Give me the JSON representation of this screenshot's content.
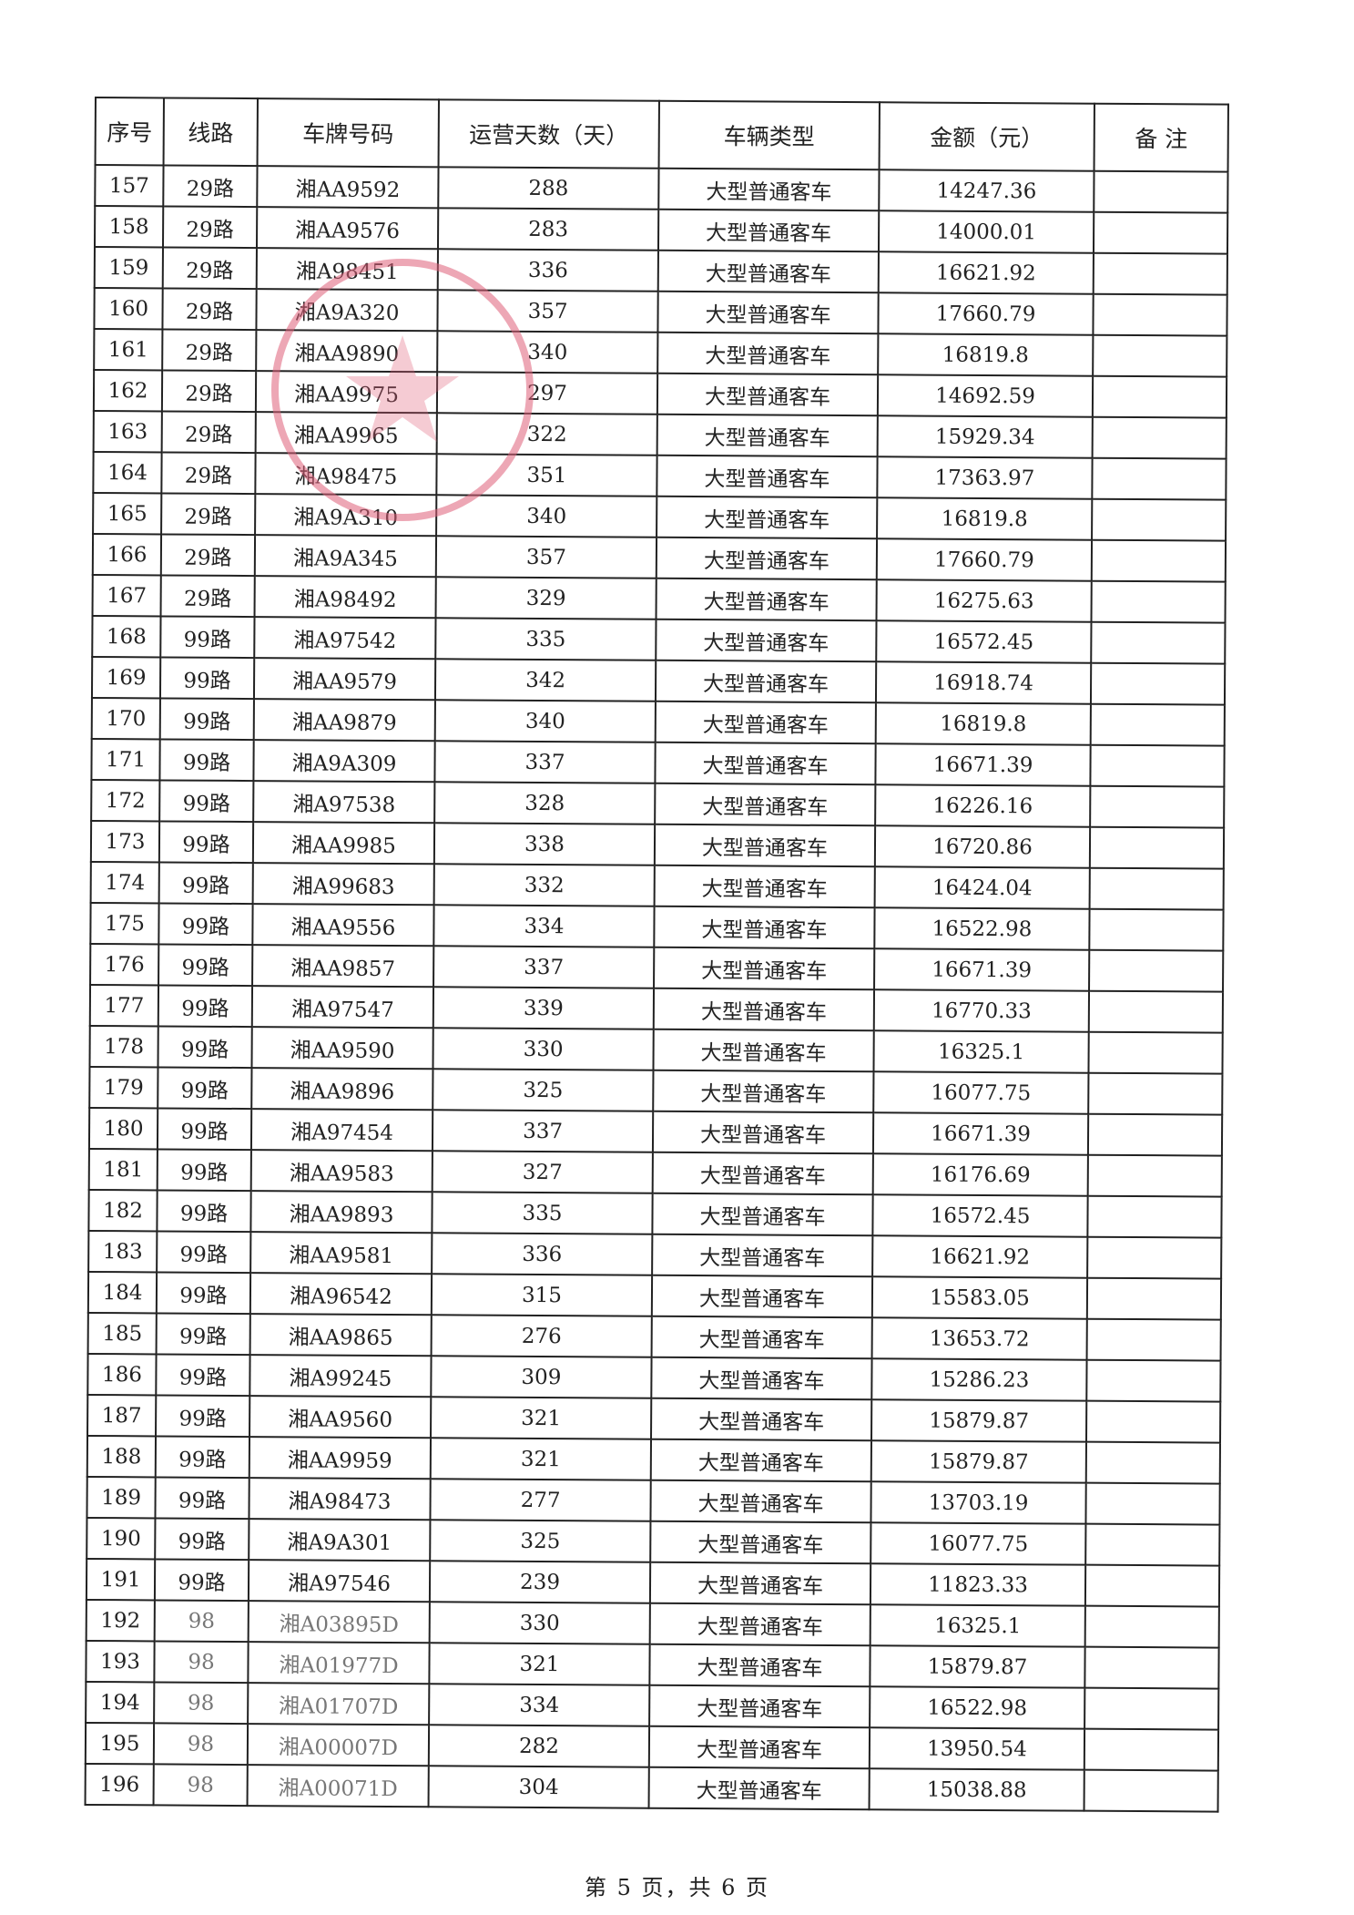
{
  "table": {
    "headers": [
      "序号",
      "线路",
      "车牌号码",
      "运营天数（天）",
      "车辆类型",
      "金额（元）",
      "备 注"
    ],
    "rows": [
      [
        "157",
        "29路",
        "湘AA9592",
        "288",
        "大型普通客车",
        "14247.36",
        ""
      ],
      [
        "158",
        "29路",
        "湘AA9576",
        "283",
        "大型普通客车",
        "14000.01",
        ""
      ],
      [
        "159",
        "29路",
        "湘A98451",
        "336",
        "大型普通客车",
        "16621.92",
        ""
      ],
      [
        "160",
        "29路",
        "湘A9A320",
        "357",
        "大型普通客车",
        "17660.79",
        ""
      ],
      [
        "161",
        "29路",
        "湘AA9890",
        "340",
        "大型普通客车",
        "16819.8",
        ""
      ],
      [
        "162",
        "29路",
        "湘AA9975",
        "297",
        "大型普通客车",
        "14692.59",
        ""
      ],
      [
        "163",
        "29路",
        "湘AA9965",
        "322",
        "大型普通客车",
        "15929.34",
        ""
      ],
      [
        "164",
        "29路",
        "湘A98475",
        "351",
        "大型普通客车",
        "17363.97",
        ""
      ],
      [
        "165",
        "29路",
        "湘A9A310",
        "340",
        "大型普通客车",
        "16819.8",
        ""
      ],
      [
        "166",
        "29路",
        "湘A9A345",
        "357",
        "大型普通客车",
        "17660.79",
        ""
      ],
      [
        "167",
        "29路",
        "湘A98492",
        "329",
        "大型普通客车",
        "16275.63",
        ""
      ],
      [
        "168",
        "99路",
        "湘A97542",
        "335",
        "大型普通客车",
        "16572.45",
        ""
      ],
      [
        "169",
        "99路",
        "湘AA9579",
        "342",
        "大型普通客车",
        "16918.74",
        ""
      ],
      [
        "170",
        "99路",
        "湘AA9879",
        "340",
        "大型普通客车",
        "16819.8",
        ""
      ],
      [
        "171",
        "99路",
        "湘A9A309",
        "337",
        "大型普通客车",
        "16671.39",
        ""
      ],
      [
        "172",
        "99路",
        "湘A97538",
        "328",
        "大型普通客车",
        "16226.16",
        ""
      ],
      [
        "173",
        "99路",
        "湘AA9985",
        "338",
        "大型普通客车",
        "16720.86",
        ""
      ],
      [
        "174",
        "99路",
        "湘A99683",
        "332",
        "大型普通客车",
        "16424.04",
        ""
      ],
      [
        "175",
        "99路",
        "湘AA9556",
        "334",
        "大型普通客车",
        "16522.98",
        ""
      ],
      [
        "176",
        "99路",
        "湘AA9857",
        "337",
        "大型普通客车",
        "16671.39",
        ""
      ],
      [
        "177",
        "99路",
        "湘A97547",
        "339",
        "大型普通客车",
        "16770.33",
        ""
      ],
      [
        "178",
        "99路",
        "湘AA9590",
        "330",
        "大型普通客车",
        "16325.1",
        ""
      ],
      [
        "179",
        "99路",
        "湘AA9896",
        "325",
        "大型普通客车",
        "16077.75",
        ""
      ],
      [
        "180",
        "99路",
        "湘A97454",
        "337",
        "大型普通客车",
        "16671.39",
        ""
      ],
      [
        "181",
        "99路",
        "湘AA9583",
        "327",
        "大型普通客车",
        "16176.69",
        ""
      ],
      [
        "182",
        "99路",
        "湘AA9893",
        "335",
        "大型普通客车",
        "16572.45",
        ""
      ],
      [
        "183",
        "99路",
        "湘AA9581",
        "336",
        "大型普通客车",
        "16621.92",
        ""
      ],
      [
        "184",
        "99路",
        "湘A96542",
        "315",
        "大型普通客车",
        "15583.05",
        ""
      ],
      [
        "185",
        "99路",
        "湘AA9865",
        "276",
        "大型普通客车",
        "13653.72",
        ""
      ],
      [
        "186",
        "99路",
        "湘A99245",
        "309",
        "大型普通客车",
        "15286.23",
        ""
      ],
      [
        "187",
        "99路",
        "湘AA9560",
        "321",
        "大型普通客车",
        "15879.87",
        ""
      ],
      [
        "188",
        "99路",
        "湘AA9959",
        "321",
        "大型普通客车",
        "15879.87",
        ""
      ],
      [
        "189",
        "99路",
        "湘A98473",
        "277",
        "大型普通客车",
        "13703.19",
        ""
      ],
      [
        "190",
        "99路",
        "湘A9A301",
        "325",
        "大型普通客车",
        "16077.75",
        ""
      ],
      [
        "191",
        "99路",
        "湘A97546",
        "239",
        "大型普通客车",
        "11823.33",
        ""
      ],
      [
        "192",
        "98",
        "湘A03895D",
        "330",
        "大型普通客车",
        "16325.1",
        ""
      ],
      [
        "193",
        "98",
        "湘A01977D",
        "321",
        "大型普通客车",
        "15879.87",
        ""
      ],
      [
        "194",
        "98",
        "湘A01707D",
        "334",
        "大型普通客车",
        "16522.98",
        ""
      ],
      [
        "195",
        "98",
        "湘A00007D",
        "282",
        "大型普通客车",
        "13950.54",
        ""
      ],
      [
        "196",
        "98",
        "湘A00071D",
        "304",
        "大型普通客车",
        "15038.88",
        ""
      ]
    ]
  },
  "stamp": {
    "color": "#e0607a",
    "icon": "star-icon"
  },
  "footer": {
    "page_label": "第 5 页，共 6 页"
  }
}
